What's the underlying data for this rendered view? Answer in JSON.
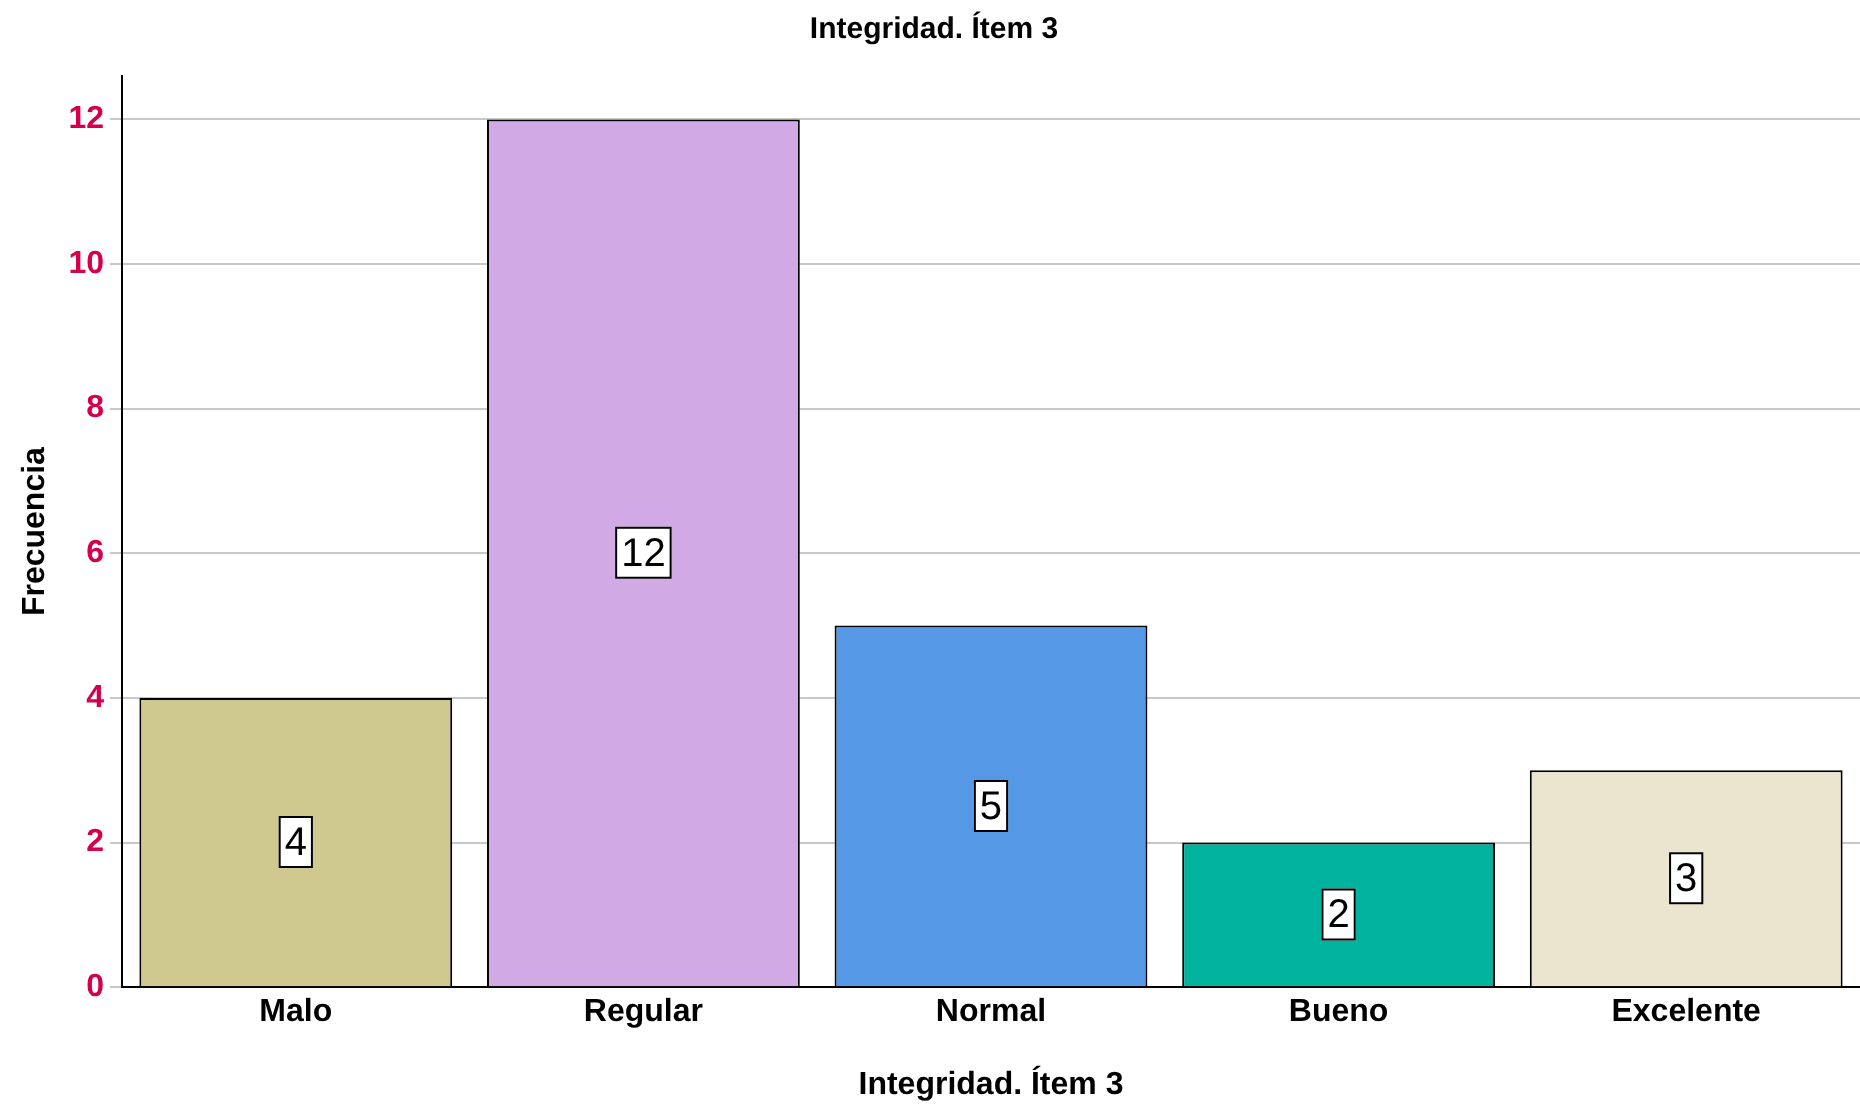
{
  "chart_data": {
    "type": "bar",
    "title": "Integridad. Ítem 3",
    "xlabel": "Integridad. Ítem 3",
    "ylabel": "Frecuencia",
    "categories": [
      "Malo",
      "Regular",
      "Normal",
      "Bueno",
      "Excelente"
    ],
    "values": [
      4,
      12,
      5,
      2,
      3
    ],
    "colors": [
      "#d0c98f",
      "#d1a9e5",
      "#5599e6",
      "#00b39f",
      "#ebe4cf"
    ],
    "ylim": [
      0,
      12.6
    ],
    "yticks": [
      0,
      2,
      4,
      6,
      8,
      10,
      12
    ],
    "grid": "y",
    "data_labels": true
  }
}
